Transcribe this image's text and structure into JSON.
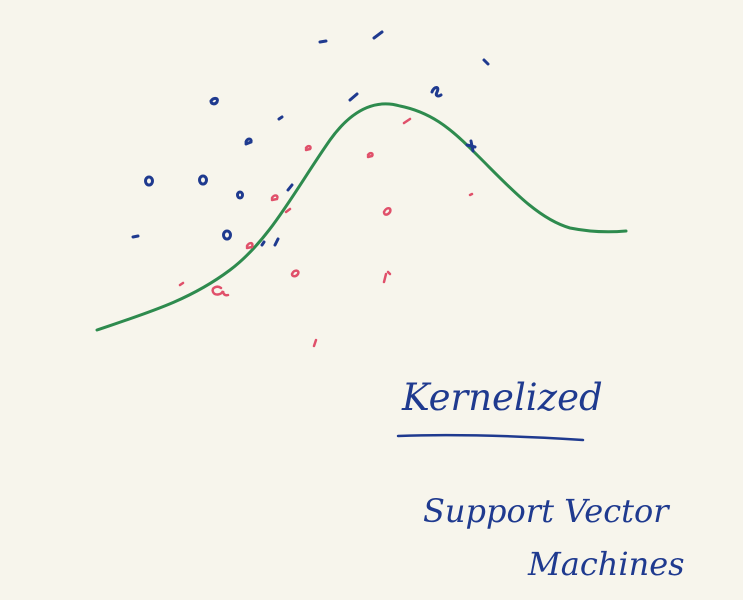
{
  "title": "Kernelized",
  "subtitle_line1": "Support Vector",
  "subtitle_line2": "Machines",
  "colors": {
    "background": "#f7f5ec",
    "curve": "#2e8b4e",
    "class_blue": "#1f3a8f",
    "class_red": "#e0506a",
    "ink": "#1f3a8f"
  }
}
